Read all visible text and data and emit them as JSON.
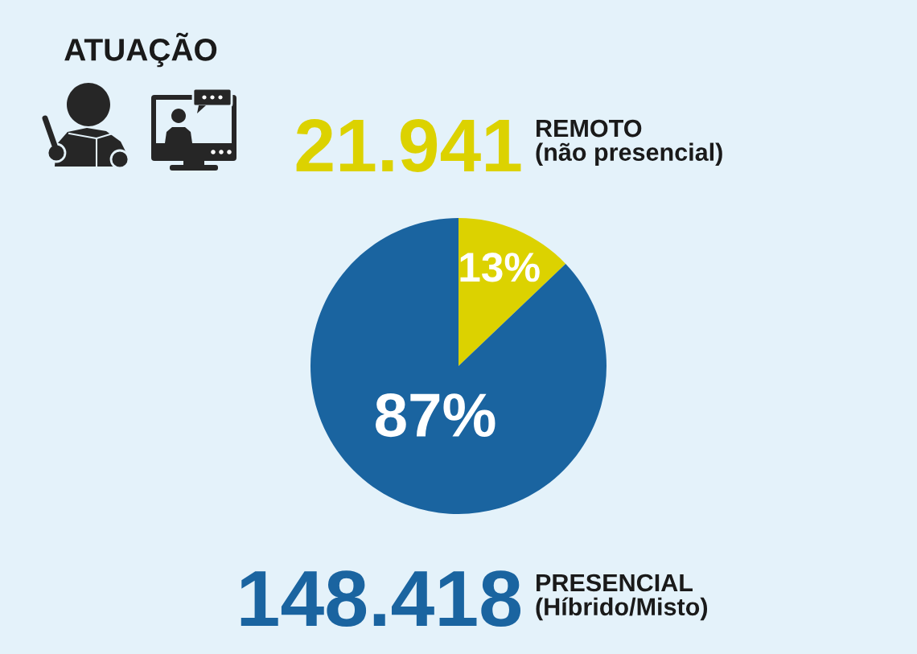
{
  "chart_data": {
    "type": "pie",
    "title": "ATUAÇÃO",
    "categories": [
      "REMOTO\n(não presencial)",
      "PRESENCIAL\n(Híbrido/Misto)"
    ],
    "values": [
      21941,
      148418
    ],
    "colors": [
      "#dcd200",
      "#1a64a0"
    ],
    "value_labels": [
      "21.941",
      "148.418"
    ],
    "annotations": [
      "13%",
      "87%"
    ]
  }
}
